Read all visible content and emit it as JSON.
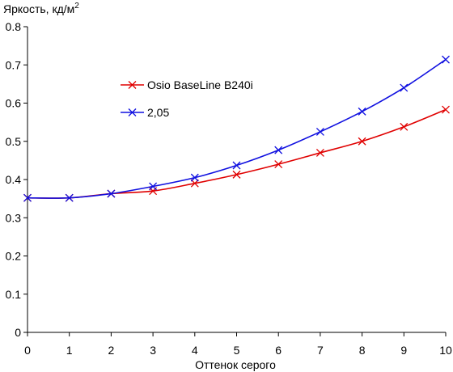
{
  "chart_data": {
    "type": "line",
    "title": "",
    "ylabel": "Яркость, кд/м",
    "ylabel_superscript": "2",
    "xlabel": "Оттенок серого",
    "x": [
      0,
      1,
      2,
      3,
      4,
      5,
      6,
      7,
      8,
      9,
      10
    ],
    "xlim": [
      0,
      10
    ],
    "ylim": [
      0,
      0.8
    ],
    "x_ticks": [
      "0",
      "1",
      "2",
      "3",
      "4",
      "5",
      "6",
      "7",
      "8",
      "9",
      "10"
    ],
    "y_ticks": [
      "0",
      "0.1",
      "0.2",
      "0.3",
      "0.4",
      "0.5",
      "0.6",
      "0.7",
      "0.8"
    ],
    "grid": false,
    "legend_position": "center-left",
    "series": [
      {
        "name": "Osio BaseLine B240i",
        "color": "#e00000",
        "marker": "x",
        "values": [
          0.352,
          0.352,
          0.363,
          0.37,
          0.39,
          0.413,
          0.44,
          0.47,
          0.5,
          0.538,
          0.583
        ]
      },
      {
        "name": "2,05",
        "color": "#1010e0",
        "marker": "x",
        "values": [
          0.352,
          0.352,
          0.363,
          0.382,
          0.405,
          0.437,
          0.477,
          0.525,
          0.578,
          0.64,
          0.714
        ]
      }
    ]
  }
}
